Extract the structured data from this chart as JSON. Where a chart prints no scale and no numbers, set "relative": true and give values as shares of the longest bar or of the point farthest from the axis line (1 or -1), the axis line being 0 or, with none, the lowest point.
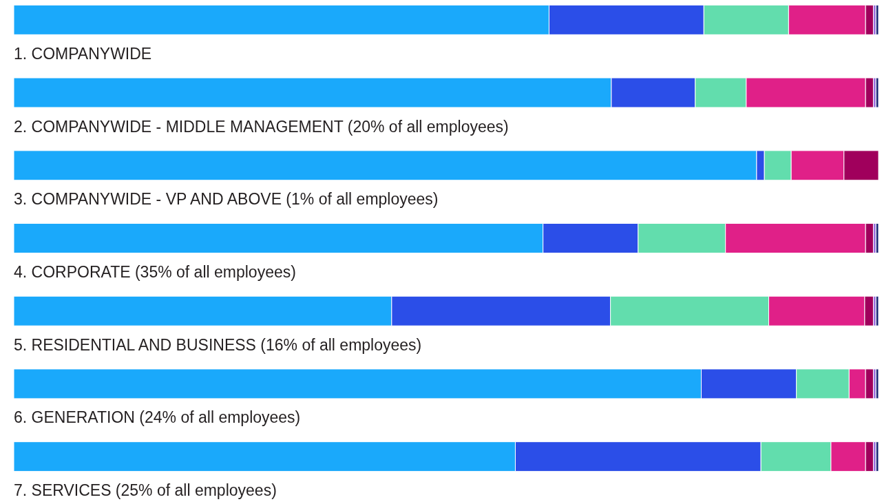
{
  "chart_data": {
    "type": "bar",
    "orientation": "horizontal",
    "stacked": true,
    "relative": true,
    "tick_labels": false,
    "categories": [
      "1. COMPANYWIDE",
      "2. COMPANYWIDE - MIDDLE MANAGEMENT (20% of all employees)",
      "3. COMPANYWIDE - VP AND ABOVE (1% of all employees)",
      "4. CORPORATE (35% of all employees)",
      "5. RESIDENTIAL AND BUSINESS (16% of all employees)",
      "6. GENERATION (24% of all employees)",
      "7. SERVICES (25% of all employees)"
    ],
    "series": [
      {
        "color": "#1aa9fb",
        "values": [
          0.619,
          0.691,
          0.859,
          0.612,
          0.437,
          0.795,
          0.58
        ]
      },
      {
        "color": "#2b4ee8",
        "values": [
          0.179,
          0.097,
          0.009,
          0.11,
          0.253,
          0.11,
          0.284
        ]
      },
      {
        "color": "#62ddad",
        "values": [
          0.098,
          0.059,
          0.031,
          0.101,
          0.183,
          0.061,
          0.081
        ]
      },
      {
        "color": "#e02088",
        "values": [
          0.089,
          0.138,
          0.061,
          0.162,
          0.111,
          0.019,
          0.04
        ]
      },
      {
        "color": "#a0005c",
        "values": [
          0.009,
          0.009,
          0.04,
          0.009,
          0.01,
          0.009,
          0.009
        ]
      },
      {
        "color": "#9a6fe0",
        "values": [
          0.003,
          0.003,
          null,
          0.003,
          0.003,
          0.003,
          0.003
        ]
      },
      {
        "color": "#1e2a78",
        "values": [
          0.003,
          0.003,
          null,
          0.003,
          0.003,
          0.003,
          0.003
        ]
      }
    ]
  }
}
